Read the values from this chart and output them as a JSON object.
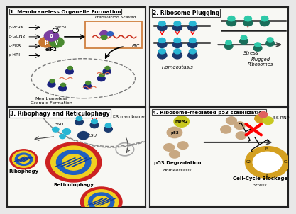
{
  "panel1_title": "1. Membraneless Organelle Formation",
  "panel2_title": "2. Ribosome Plugging",
  "panel3_title": "3. Ribophagy and Reticulophagy",
  "panel4_title": "4. Ribosome-mediated p53 stabilization",
  "bg_color": "#f0f0f0",
  "panel_bg": "#f5f5f0",
  "p1_kinases": [
    "p-PERK",
    "p-GCN2",
    "p-PKR",
    "p-HRI"
  ],
  "p1_eif2": "eIF2",
  "p1_ser51": "Ser 51",
  "p1_translation": "Translation Stalled",
  "p1_PIC": "PIC",
  "p1_granule": "Membraneless\nGranule Formation",
  "p2_homeostasis": "Homeostasis",
  "p2_stress": "Stress",
  "p2_plugged": "Plugged\nRibosomes",
  "p3_SSU": "SSU",
  "p3_LSU": "LSU",
  "p3_ER": "ER membrane",
  "p3_ribophagy": "Ribophagy",
  "p3_reticulophagy": "Reticulophagy",
  "p4_MDM2": "MDM2",
  "p4_p53a": "p53",
  "p4_p53b": "p53",
  "p4_5SRNP": "5S RNP",
  "p4_degradation": "p53 Degradation",
  "p4_blockage": "Cell-Cycle Blockage",
  "p4_homeostasis": "Homeostasis",
  "p4_stress": "Stress",
  "colors": {
    "ribosome_large_blue": "#1a3a6e",
    "ribosome_small_cyan": "#29b6d4",
    "ribosome_teal_large": "#1a6e5a",
    "ribosome_teal_small": "#2ec9a8",
    "eif2_alpha_purple": "#7b3fa0",
    "eif2_beta_orange": "#c87832",
    "eif2_gamma_green": "#4a8a30",
    "lyso_red": "#cc2222",
    "lyso_yellow": "#f0d020",
    "lyso_blue": "#2060c0",
    "lyso_stripe": "#1040a0",
    "p53_tan": "#c8a882",
    "mdm2_yellow": "#c8c820",
    "cell_cycle_gold": "#d4a020",
    "mRNA_red": "#cc3322",
    "arrow_gray": "#444444",
    "red_arrow": "#cc0000",
    "er_gray": "#888888"
  }
}
